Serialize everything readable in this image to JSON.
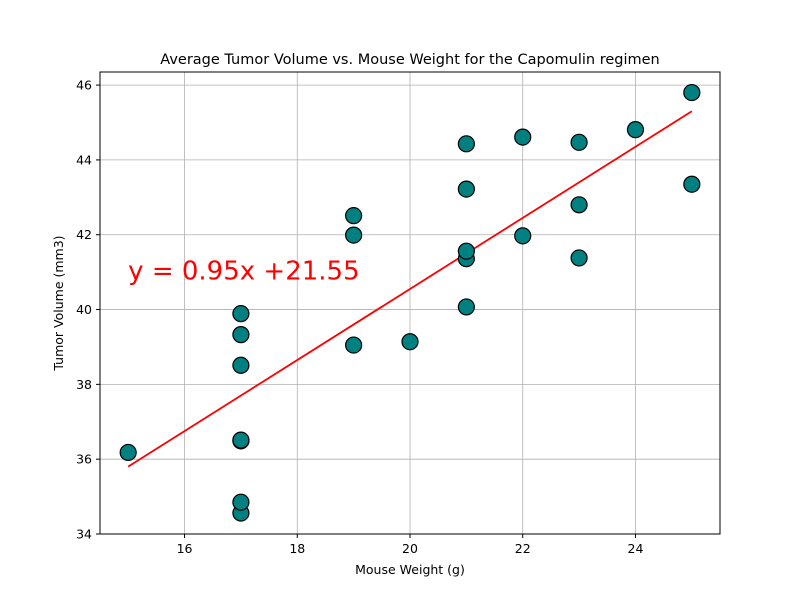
{
  "chart_data": {
    "type": "scatter",
    "title": "Average Tumor Volume vs. Mouse Weight for the Capomulin regimen",
    "xlabel": "Mouse Weight (g)",
    "ylabel": "Tumor Volume (mm3)",
    "xlim": [
      14.5,
      25.5
    ],
    "ylim": [
      34,
      46.35
    ],
    "xticks": [
      16,
      18,
      20,
      22,
      24
    ],
    "yticks": [
      34,
      36,
      38,
      40,
      42,
      44,
      46
    ],
    "grid": true,
    "points": [
      {
        "x": 15,
        "y": 36.18
      },
      {
        "x": 17,
        "y": 34.56
      },
      {
        "x": 17,
        "y": 34.85
      },
      {
        "x": 17,
        "y": 36.49
      },
      {
        "x": 17,
        "y": 36.51
      },
      {
        "x": 17,
        "y": 38.51
      },
      {
        "x": 17,
        "y": 39.33
      },
      {
        "x": 17,
        "y": 39.89
      },
      {
        "x": 19,
        "y": 39.05
      },
      {
        "x": 19,
        "y": 41.99
      },
      {
        "x": 19,
        "y": 42.51
      },
      {
        "x": 20,
        "y": 39.14
      },
      {
        "x": 21,
        "y": 40.07
      },
      {
        "x": 21,
        "y": 41.36
      },
      {
        "x": 21,
        "y": 41.56
      },
      {
        "x": 21,
        "y": 43.22
      },
      {
        "x": 21,
        "y": 44.43
      },
      {
        "x": 22,
        "y": 41.97
      },
      {
        "x": 22,
        "y": 44.61
      },
      {
        "x": 23,
        "y": 41.38
      },
      {
        "x": 23,
        "y": 42.8
      },
      {
        "x": 23,
        "y": 44.47
      },
      {
        "x": 24,
        "y": 44.81
      },
      {
        "x": 25,
        "y": 43.35
      },
      {
        "x": 25,
        "y": 45.8
      }
    ],
    "regression": {
      "slope": 0.95,
      "intercept": 21.55,
      "x_range": [
        15,
        25
      ],
      "label": "y = 0.95x +21.55",
      "label_at": {
        "x": 15,
        "y": 40.8
      }
    },
    "colors": {
      "marker_fill": "#008080",
      "marker_edge": "#000000",
      "line": "#ff0000",
      "grid": "#b0b0b0"
    }
  }
}
